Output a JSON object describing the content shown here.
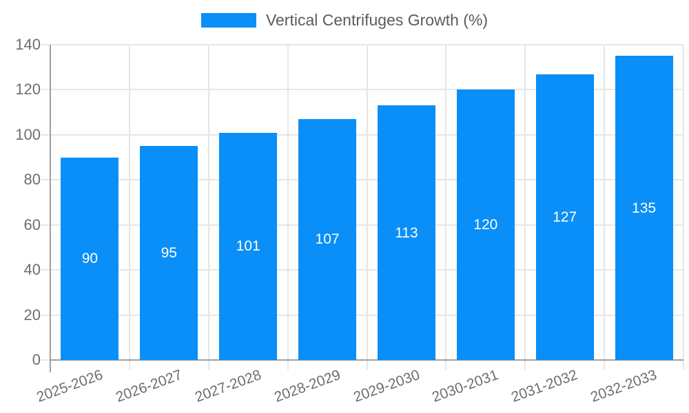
{
  "chart_data": {
    "type": "bar",
    "title": "Vertical Centrifuges Growth (%)",
    "categories": [
      "2025-2026",
      "2026-2027",
      "2027-2028",
      "2028-2029",
      "2029-2030",
      "2030-2031",
      "2031-2032",
      "2032-2033"
    ],
    "values": [
      90,
      95,
      101,
      107,
      113,
      120,
      127,
      135
    ],
    "xlabel": "",
    "ylabel": "",
    "ylim": [
      0,
      140
    ],
    "ytick_step": 20,
    "yticks": [
      0,
      20,
      40,
      60,
      80,
      100,
      120,
      140
    ],
    "grid": true,
    "legend_position": "top",
    "legend_entries": [
      "Vertical Centrifuges Growth (%)"
    ],
    "bar_labels_inside": true,
    "colors": {
      "bar": "#0a8ef7",
      "bar_label": "#ffffff",
      "grid": "#e6e6e6",
      "axis": "#9e9e9e",
      "tick_text": "#6e6e6e",
      "legend_text": "#5b5b5b",
      "background": "#ffffff"
    }
  }
}
